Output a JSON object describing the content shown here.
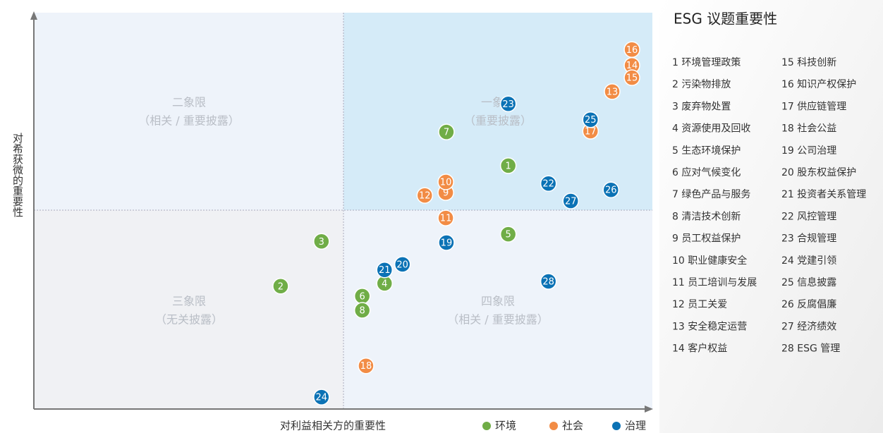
{
  "chart_data": {
    "type": "scatter",
    "title": "ESG 议题重要性",
    "xlabel": "对利益相关方的重要性",
    "ylabel": "对希获微的重要性",
    "xlim": [
      0,
      10
    ],
    "ylim": [
      0,
      10
    ],
    "quadrants": [
      {
        "title": "一象限",
        "subtitle": "（重要披露）"
      },
      {
        "title": "二象限",
        "subtitle": "（相关 / 重要披露）"
      },
      {
        "title": "三象限",
        "subtitle": "（无关披露）"
      },
      {
        "title": "四象限",
        "subtitle": "（相关 / 重要披露）"
      }
    ],
    "series": [
      {
        "name": "环境",
        "color": "#70ad47",
        "labels": [
          "1",
          "2",
          "3",
          "4",
          "5",
          "6",
          "7",
          "8"
        ],
        "x": [
          7.67,
          3.99,
          4.65,
          5.67,
          7.67,
          5.31,
          6.67,
          5.31
        ],
        "values": [
          6.14,
          3.1,
          4.23,
          3.17,
          4.41,
          2.85,
          6.99,
          2.49
        ]
      },
      {
        "name": "社会",
        "color": "#f28c45",
        "labels": [
          "9",
          "10",
          "11",
          "12",
          "13",
          "14",
          "15",
          "16",
          "17",
          "18"
        ],
        "x": [
          6.66,
          6.66,
          6.66,
          6.32,
          9.35,
          9.67,
          9.67,
          9.67,
          9.0,
          5.37
        ],
        "values": [
          5.46,
          5.73,
          4.82,
          5.39,
          8.01,
          8.67,
          8.36,
          9.07,
          7.01,
          1.09
        ]
      },
      {
        "name": "治理",
        "color": "#0b72b5",
        "labels": [
          "19",
          "20",
          "21",
          "22",
          "23",
          "24",
          "25",
          "26",
          "27",
          "28"
        ],
        "x": [
          6.67,
          5.96,
          5.67,
          8.32,
          7.67,
          4.65,
          9.0,
          9.33,
          8.68,
          8.32
        ],
        "values": [
          4.2,
          3.65,
          3.51,
          5.69,
          7.7,
          0.3,
          7.3,
          5.53,
          5.25,
          3.22
        ]
      }
    ],
    "issues": [
      "1 环境管理政策",
      "2 污染物排放",
      "3 废弃物处置",
      "4 资源使用及回收",
      "5 生态环境保护",
      "6 应对气候变化",
      "7 绿色产品与服务",
      "8 清洁技术创新",
      "9 员工权益保护",
      "10 职业健康安全",
      "11 员工培训与发展",
      "12 员工关爱",
      "13 安全稳定运营",
      "14 客户权益",
      "15 科技创新",
      "16 知识产权保护",
      "17 供应链管理",
      "18 社会公益",
      "19 公司治理",
      "20 股东权益保护",
      "21 投资者关系管理",
      "22 风控管理",
      "23 合规管理",
      "24 党建引领",
      "25 信息披露",
      "26 反腐倡廉",
      "27 经济绩效",
      "28 ESG 管理"
    ]
  }
}
